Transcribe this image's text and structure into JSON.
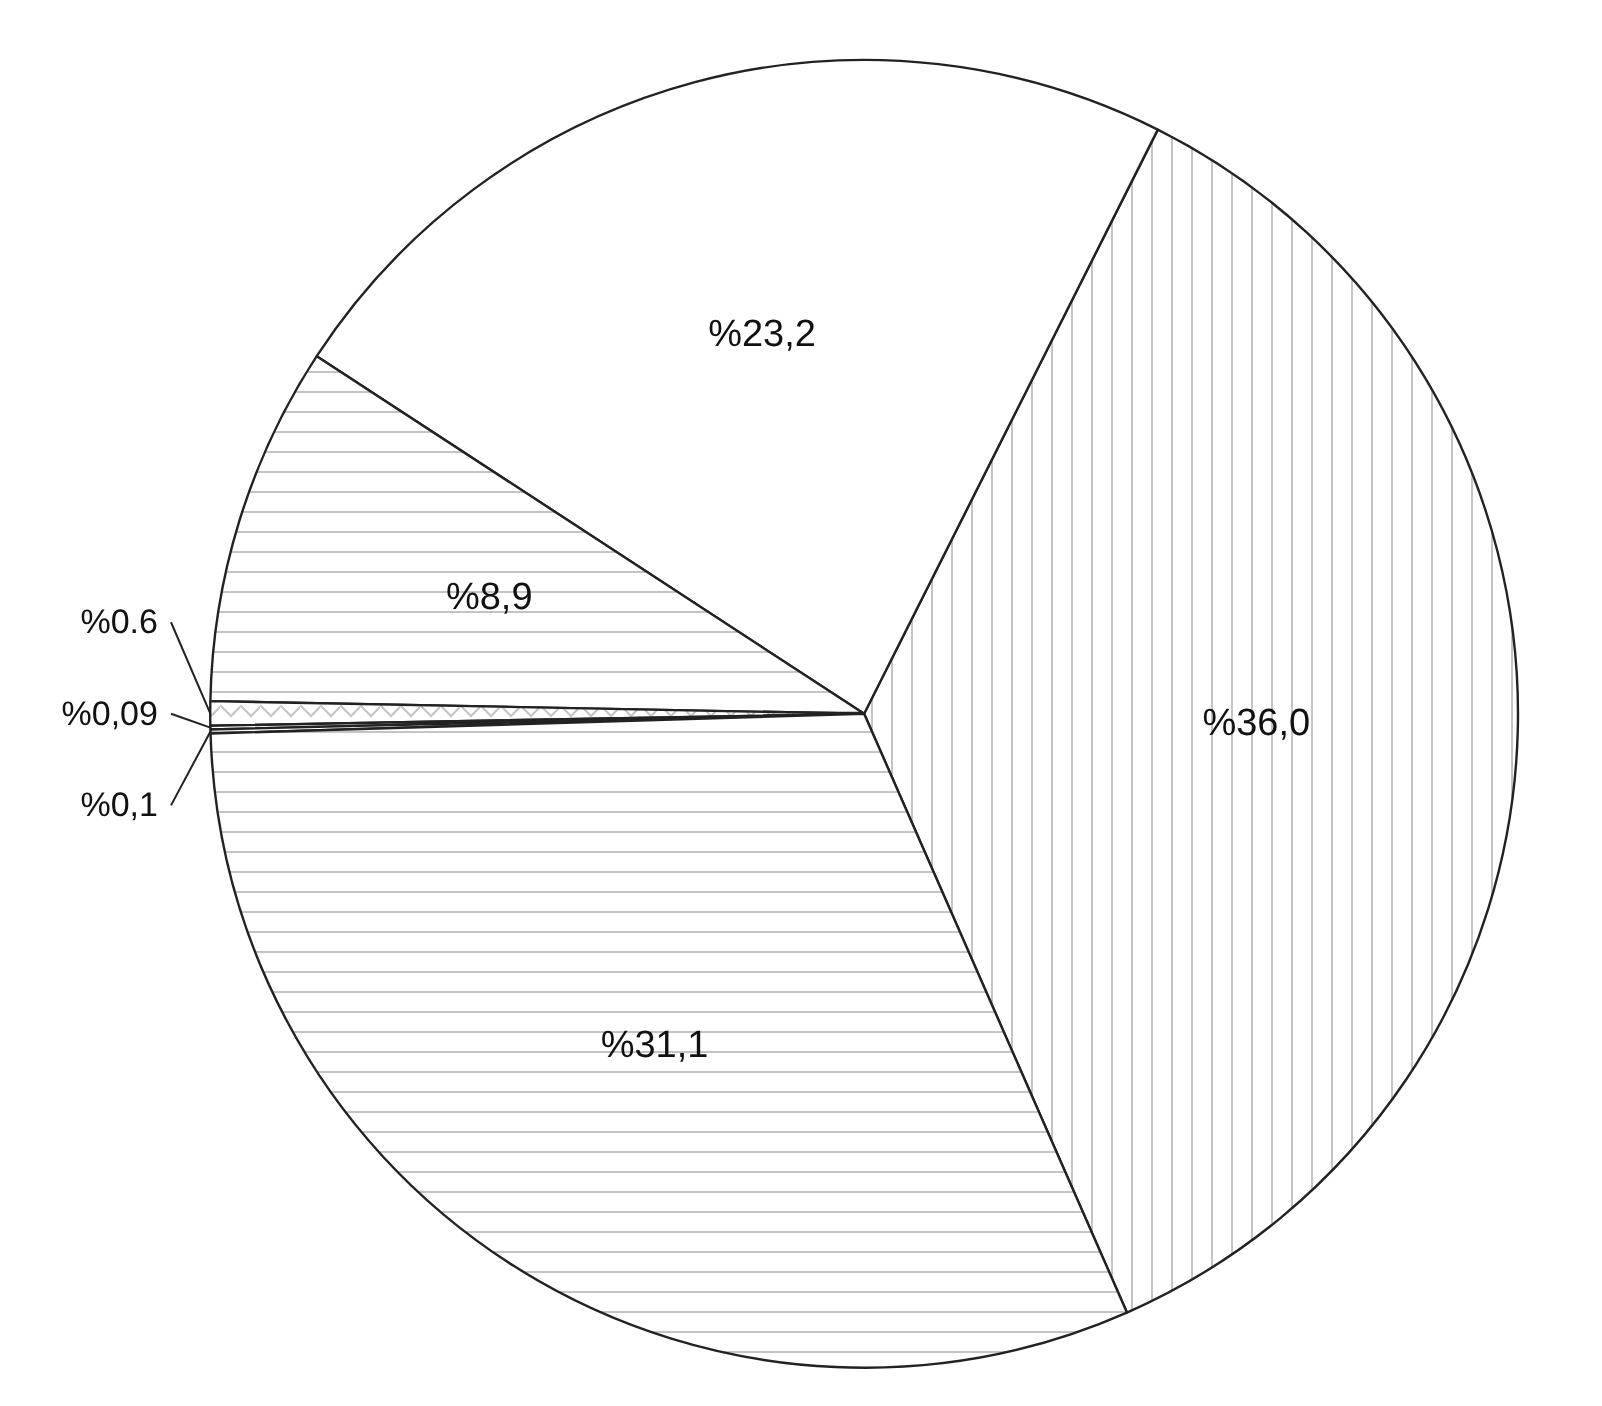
{
  "chart_data": {
    "type": "pie",
    "categories": [
      null,
      null,
      null,
      null,
      null,
      null,
      null
    ],
    "values": [
      36.0,
      23.2,
      8.9,
      0.6,
      0.09,
      0.1,
      31.1
    ],
    "colors": [
      "#ffffff",
      "#ffffff",
      "#ffffff",
      "#ffffff",
      "#ffffff",
      "#ffffff",
      "#ffffff"
    ],
    "value_labels": [
      "%36,0",
      "%23,2",
      "%8,9",
      "%0.6",
      "%0,09",
      "%0,1",
      "%31,1"
    ]
  }
}
